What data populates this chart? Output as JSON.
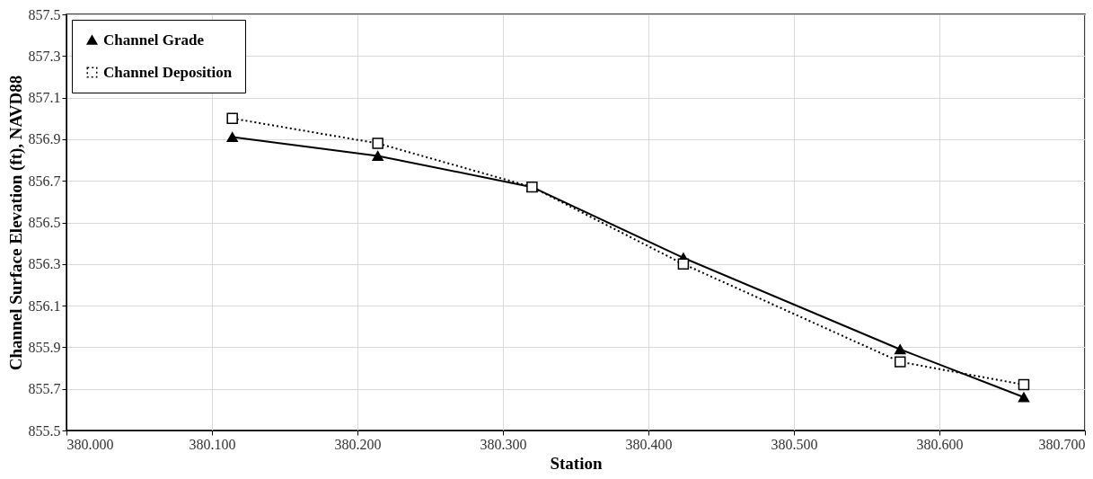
{
  "chart_data": {
    "type": "line",
    "xlabel": "Station",
    "ylabel": "Channel Surface Elevation (ft),  NAVD88",
    "series": [
      {
        "name": "Channel Grade",
        "color": "#000000",
        "marker": "triangle",
        "line_style": "solid",
        "x": [
          380.114,
          380.214,
          380.32,
          380.424,
          380.573,
          380.658
        ],
        "values": [
          856.91,
          856.82,
          856.67,
          856.33,
          855.89,
          855.66
        ]
      },
      {
        "name": "Channel Deposition",
        "color": "#000000",
        "marker": "square",
        "line_style": "dotted",
        "x": [
          380.114,
          380.214,
          380.32,
          380.424,
          380.573,
          380.658
        ],
        "values": [
          857.0,
          856.88,
          856.67,
          856.3,
          855.83,
          855.72
        ]
      }
    ],
    "xlim": [
      380.0,
      380.7
    ],
    "xticks": [
      {
        "value": 380.0,
        "label": "380.000"
      },
      {
        "value": 380.1,
        "label": "380.100"
      },
      {
        "value": 380.2,
        "label": "380.200"
      },
      {
        "value": 380.3,
        "label": "380.300"
      },
      {
        "value": 380.4,
        "label": "380.400"
      },
      {
        "value": 380.5,
        "label": "380.500"
      },
      {
        "value": 380.6,
        "label": "380.600"
      },
      {
        "value": 380.7,
        "label": "380.700"
      }
    ],
    "ylim": [
      855.5,
      857.5
    ],
    "yticks": [
      855.5,
      855.7,
      855.9,
      856.1,
      856.3,
      856.5,
      856.7,
      856.9,
      857.1,
      857.3,
      857.5
    ],
    "grid": true,
    "legend": "top left"
  }
}
